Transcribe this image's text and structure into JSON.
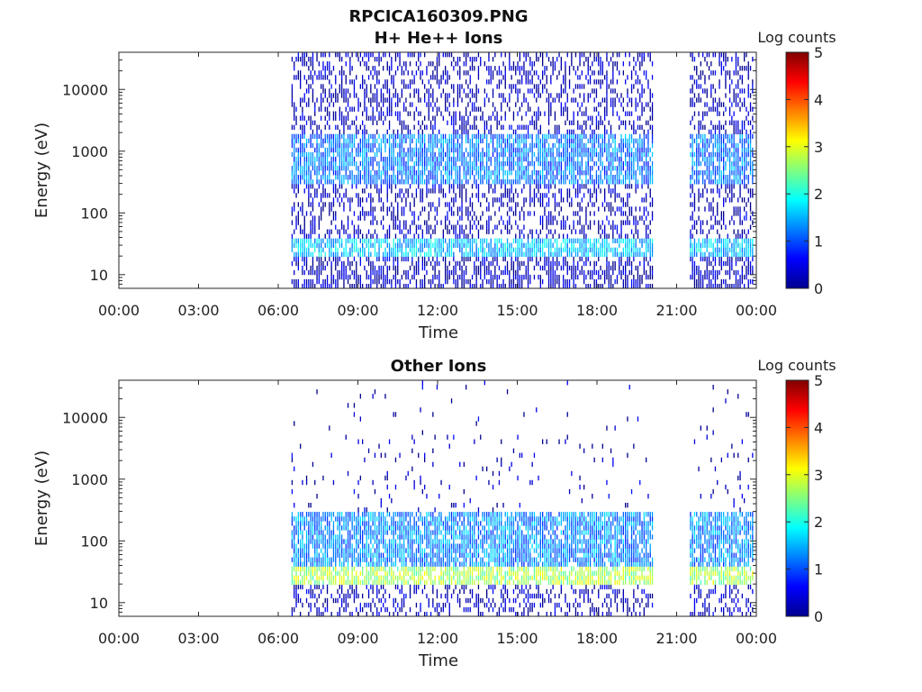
{
  "figure": {
    "title_line1": "RPCICA160309.PNG"
  },
  "chart_data": [
    {
      "type": "heatmap",
      "title": "H+ He++ Ions",
      "xlabel": "Time",
      "ylabel": "Energy (eV)",
      "x_ticks": [
        "00:00",
        "03:00",
        "06:00",
        "09:00",
        "12:00",
        "15:00",
        "18:00",
        "21:00",
        "00:00"
      ],
      "x_range_hours": [
        0,
        24
      ],
      "y_scale": "log",
      "y_ticks": [
        10,
        100,
        1000,
        10000
      ],
      "y_tick_labels": [
        "10",
        "100",
        "1000",
        "10000"
      ],
      "y_range": [
        6,
        40000
      ],
      "colorbar": {
        "label": "Log counts",
        "ticks": [
          "0",
          "1",
          "2",
          "3",
          "4",
          "5"
        ],
        "range": [
          0,
          5
        ],
        "colormap": "jet"
      },
      "data_intervals_hours": [
        [
          6.5,
          20.1
        ],
        [
          21.5,
          23.9
        ]
      ],
      "features": [
        {
          "description": "bright band",
          "energy_eV": [
            20,
            40
          ],
          "level": 1.6
        },
        {
          "description": "moderate band",
          "energy_eV": [
            300,
            2000
          ],
          "level": 1.2
        }
      ]
    },
    {
      "type": "heatmap",
      "title": "Other Ions",
      "xlabel": "Time",
      "ylabel": "Energy (eV)",
      "x_ticks": [
        "00:00",
        "03:00",
        "06:00",
        "09:00",
        "12:00",
        "15:00",
        "18:00",
        "21:00",
        "00:00"
      ],
      "x_range_hours": [
        0,
        24
      ],
      "y_scale": "log",
      "y_ticks": [
        10,
        100,
        1000,
        10000
      ],
      "y_tick_labels": [
        "10",
        "100",
        "1000",
        "10000"
      ],
      "y_range": [
        6,
        40000
      ],
      "colorbar": {
        "label": "Log counts",
        "ticks": [
          "0",
          "1",
          "2",
          "3",
          "4",
          "5"
        ],
        "range": [
          0,
          5
        ],
        "colormap": "jet"
      },
      "data_intervals_hours": [
        [
          6.5,
          20.1
        ],
        [
          21.5,
          23.9
        ]
      ],
      "features": [
        {
          "description": "bright band",
          "energy_eV": [
            20,
            40
          ],
          "level": 2.7
        },
        {
          "description": "moderate band",
          "energy_eV": [
            40,
            300
          ],
          "level": 1.3
        }
      ]
    }
  ]
}
